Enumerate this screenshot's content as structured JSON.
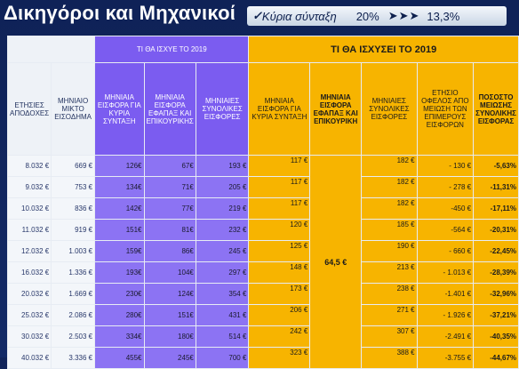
{
  "title": "Δικηγόροι και Μηχανικοί",
  "banner": {
    "check_glyph": "✓",
    "label": "Κύρια σύνταξη",
    "percent": "20%",
    "arrows": "➤➤➤",
    "result": "13,3%"
  },
  "table": {
    "group_current": "ΤΙ ΘΑ ΙΣΧΥΕ ΤΟ 2019",
    "group_future": "ΤΙ ΘΑ ΙΣΧΥΣΕΙ ΤΟ 2019",
    "headers": {
      "annual_earnings": "ΕΤΗΣΙΕΣ ΑΠΟΔΟΧΕΣ",
      "monthly_gross": "ΜΗΝΙΑΙΟ ΜΙΚΤΟ ΕΙΣΟΔΗΜΑ",
      "cur_main": "ΜΗΝΙΑΙΑ ΕΙΣΦΟΡΑ ΓΙΑ ΚΥΡΙΑ ΣΥΝΤΑΞΗ",
      "cur_efka": "ΜΗΝΙΑΙΑ ΕΙΣΦΟΡΑ ΕΦΑΠΑΞ ΚΑΙ ΕΠΙΚΟΥΡΙΚΗΣ",
      "cur_total": "ΜΗΝΙΑΙΕΣ ΣΥΝΟΛΙΚΕΣ ΕΙΣΦΟΡΕΣ",
      "fut_main": "ΜΗΝΙΑΙΑ ΕΙΣΦΟΡΑ ΓΙΑ ΚΥΡΙΑ ΣΥΝΤΑΞΗ",
      "fut_efka": "ΜΗΝΙΑΙΑ ΕΙΣΦΟΡΑ ΕΦΑΠΑΞ ΚΑΙ ΕΠΙΚΟΥΡΙΚΗ",
      "fut_total": "ΜΗΝΙΑΙΕΣ ΣΥΝΟΛΙΚΕΣ ΕΙΣΦΟΡΕΣ",
      "annual_benefit": "ΕΤΗΣΙΟ ΟΦΕΛΟΣ ΑΠΟ ΜΕΙΩΣΗ ΤΩΝ ΕΠΙΜΕΡΟΥΣ ΕΙΣΦΟΡΩΝ",
      "reduction_pct": "ΠΟΣΟΣΤΟ ΜΕΙΩΣΗΣ ΣΥΝΟΛΙΚΗΣ ΕΙΣΦΟΡΑΣ"
    },
    "merged_efka_value": "64,5 €",
    "rows": [
      {
        "annual": "8.032 €",
        "monthly": "669 €",
        "cur_main": "126€",
        "cur_efka": "67€",
        "cur_total": "193 €",
        "fut_main": "117 €",
        "fut_total": "182 €",
        "benefit": "- 130 €",
        "pct": "-5,63%"
      },
      {
        "annual": "9.032 €",
        "monthly": "753 €",
        "cur_main": "134€",
        "cur_efka": "71€",
        "cur_total": "205 €",
        "fut_main": "117 €",
        "fut_total": "182 €",
        "benefit": "- 278 €",
        "pct": "-11,31%"
      },
      {
        "annual": "10.032 €",
        "monthly": "836 €",
        "cur_main": "142€",
        "cur_efka": "77€",
        "cur_total": "219 €",
        "fut_main": "117 €",
        "fut_total": "182 €",
        "benefit": "-450 €",
        "pct": "-17,11%"
      },
      {
        "annual": "11.032 €",
        "monthly": "919 €",
        "cur_main": "151€",
        "cur_efka": "81€",
        "cur_total": "232 €",
        "fut_main": "120 €",
        "fut_total": "185 €",
        "benefit": "-564 €",
        "pct": "-20,31%"
      },
      {
        "annual": "12.032 €",
        "monthly": "1.003 €",
        "cur_main": "159€",
        "cur_efka": "86€",
        "cur_total": "245 €",
        "fut_main": "125 €",
        "fut_total": "190 €",
        "benefit": "- 660 €",
        "pct": "-22,45%"
      },
      {
        "annual": "16.032 €",
        "monthly": "1.336 €",
        "cur_main": "193€",
        "cur_efka": "104€",
        "cur_total": "297 €",
        "fut_main": "148 €",
        "fut_total": "213 €",
        "benefit": "- 1.013 €",
        "pct": "-28,39%"
      },
      {
        "annual": "20.032 €",
        "monthly": "1.669 €",
        "cur_main": "230€",
        "cur_efka": "124€",
        "cur_total": "354 €",
        "fut_main": "173 €",
        "fut_total": "238 €",
        "benefit": "-1.401 €",
        "pct": "-32,96%"
      },
      {
        "annual": "25.032 €",
        "monthly": "2.086 €",
        "cur_main": "280€",
        "cur_efka": "151€",
        "cur_total": "431 €",
        "fut_main": "206 €",
        "fut_total": "271 €",
        "benefit": "- 1.926 €",
        "pct": "-37,21%"
      },
      {
        "annual": "30.032 €",
        "monthly": "2.503 €",
        "cur_main": "334€",
        "cur_efka": "180€",
        "cur_total": "514 €",
        "fut_main": "242 €",
        "fut_total": "307 €",
        "benefit": "-2.491 €",
        "pct": "-40,35%"
      },
      {
        "annual": "40.032 €",
        "monthly": "3.336 €",
        "cur_main": "455€",
        "cur_efka": "245€",
        "cur_total": "700 €",
        "fut_main": "323 €",
        "fut_total": "388 €",
        "benefit": "-3.755 €",
        "pct": "-44,67%"
      }
    ]
  }
}
